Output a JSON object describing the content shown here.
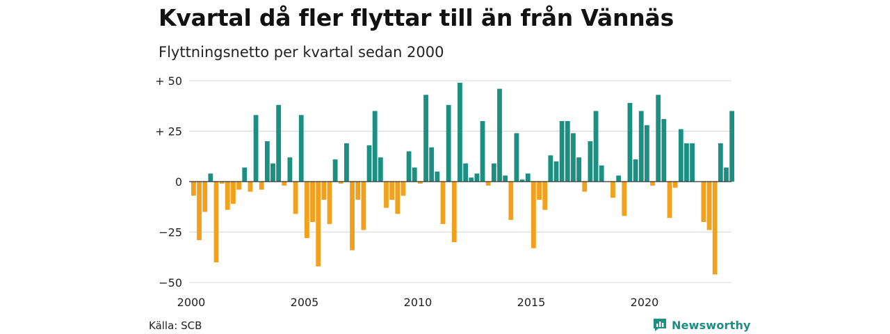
{
  "chart_data": {
    "type": "bar",
    "title": "Kvartal då fler flyttar till än från Vännäs",
    "subtitle": "Flyttningsnetto per kvartal sedan 2000",
    "source": "Källa: SCB",
    "brand": "Newsworthy",
    "y_ticks": [
      50,
      25,
      0,
      -25,
      -50
    ],
    "y_tick_labels": [
      "+ 50",
      "+ 25",
      "0",
      "−25",
      "−50"
    ],
    "ylim": [
      -50,
      50
    ],
    "x_ticks": [
      2000,
      2005,
      2010,
      2015,
      2020
    ],
    "x_tick_labels": [
      "2000",
      "2005",
      "2010",
      "2015",
      "2020"
    ],
    "grid": true,
    "colors": {
      "positive": "#1a8f82",
      "negative": "#f2a11e",
      "grid": "#d9d9d9",
      "zero": "#333333"
    },
    "x": [
      "2000 Q1",
      "2000 Q2",
      "2000 Q3",
      "2000 Q4",
      "2001 Q1",
      "2001 Q2",
      "2001 Q3",
      "2001 Q4",
      "2002 Q1",
      "2002 Q2",
      "2002 Q3",
      "2002 Q4",
      "2003 Q1",
      "2003 Q2",
      "2003 Q3",
      "2003 Q4",
      "2004 Q1",
      "2004 Q2",
      "2004 Q3",
      "2004 Q4",
      "2005 Q1",
      "2005 Q2",
      "2005 Q3",
      "2005 Q4",
      "2006 Q1",
      "2006 Q2",
      "2006 Q3",
      "2006 Q4",
      "2007 Q1",
      "2007 Q2",
      "2007 Q3",
      "2007 Q4",
      "2008 Q1",
      "2008 Q2",
      "2008 Q3",
      "2008 Q4",
      "2009 Q1",
      "2009 Q2",
      "2009 Q3",
      "2009 Q4",
      "2010 Q1",
      "2010 Q2",
      "2010 Q3",
      "2010 Q4",
      "2011 Q1",
      "2011 Q2",
      "2011 Q3",
      "2011 Q4",
      "2012 Q1",
      "2012 Q2",
      "2012 Q3",
      "2012 Q4",
      "2013 Q1",
      "2013 Q2",
      "2013 Q3",
      "2013 Q4",
      "2014 Q1",
      "2014 Q2",
      "2014 Q3",
      "2014 Q4",
      "2015 Q1",
      "2015 Q2",
      "2015 Q3",
      "2015 Q4",
      "2016 Q1",
      "2016 Q2",
      "2016 Q3",
      "2016 Q4",
      "2017 Q1",
      "2017 Q2",
      "2017 Q3",
      "2017 Q4",
      "2018 Q1",
      "2018 Q2",
      "2018 Q3",
      "2018 Q4",
      "2019 Q1",
      "2019 Q2",
      "2019 Q3",
      "2019 Q4",
      "2020 Q1",
      "2020 Q2",
      "2020 Q3",
      "2020 Q4",
      "2021 Q1",
      "2021 Q2",
      "2021 Q3",
      "2021 Q4",
      "2022 Q1",
      "2022 Q2",
      "2022 Q3",
      "2022 Q4",
      "2023 Q1",
      "2023 Q2",
      "2023 Q3",
      "2023 Q4"
    ],
    "values": [
      -7,
      -29,
      -15,
      4,
      -40,
      -1,
      -14,
      -11,
      -4,
      7,
      -5,
      33,
      -4,
      20,
      9,
      38,
      -2,
      12,
      -16,
      33,
      -28,
      -20,
      -42,
      -9,
      -21,
      11,
      -1,
      19,
      -34,
      -9,
      -24,
      18,
      35,
      12,
      -13,
      -9,
      -16,
      -7,
      15,
      7,
      -1,
      43,
      17,
      5,
      -21,
      38,
      -30,
      49,
      9,
      2,
      4,
      30,
      -2,
      9,
      46,
      3,
      -19,
      24,
      1,
      4,
      -33,
      -9,
      -14,
      13,
      10,
      30,
      30,
      24,
      12,
      -5,
      20,
      35,
      8,
      0,
      -8,
      3,
      -17,
      39,
      11,
      35,
      28,
      -2,
      43,
      31,
      -18,
      -3,
      26,
      19,
      19,
      0,
      -20,
      -24,
      -46,
      19,
      7,
      35
    ]
  }
}
